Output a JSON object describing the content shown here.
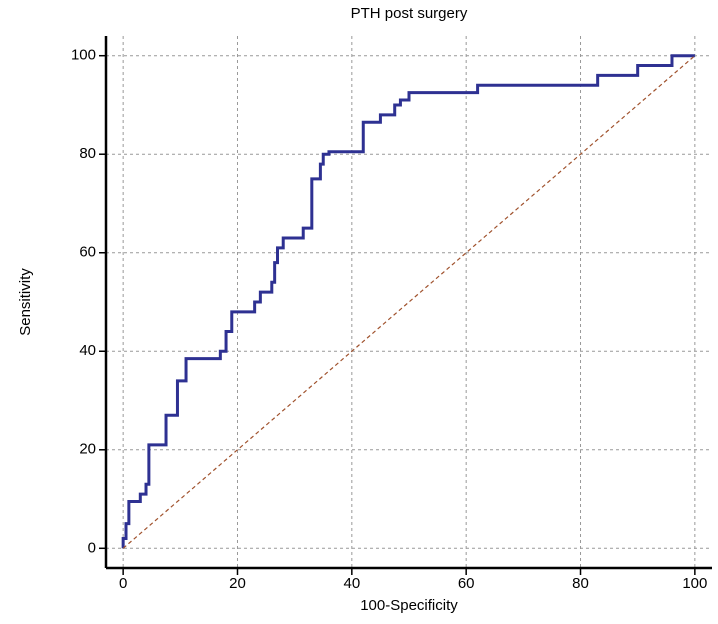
{
  "chart_data": {
    "type": "line",
    "title": "PTH  post surgery",
    "xlabel": "100-Specificity",
    "ylabel": "Sensitivity",
    "xlim": [
      -3,
      103
    ],
    "ylim": [
      -4,
      104
    ],
    "xticks": [
      0,
      20,
      40,
      60,
      80,
      100
    ],
    "yticks": [
      0,
      20,
      40,
      60,
      80,
      100
    ],
    "grid": true,
    "series": [
      {
        "color": "#2e3192",
        "style": "solid",
        "x": [
          0,
          0,
          0.5,
          0.5,
          1,
          1,
          3,
          3,
          4,
          4,
          4.5,
          4.5,
          7.5,
          7.5,
          9.5,
          9.5,
          11,
          11,
          17,
          17,
          18,
          18,
          19,
          19,
          23,
          23,
          24,
          24,
          26,
          26,
          26.5,
          26.5,
          27,
          27,
          28,
          28,
          31.5,
          31.5,
          33,
          33,
          34.5,
          34.5,
          35,
          35,
          36,
          36,
          42,
          42,
          45,
          45,
          47.5,
          47.5,
          48.5,
          48.5,
          50,
          50,
          62,
          62,
          83,
          83,
          90,
          90,
          96,
          96,
          100
        ],
        "values": [
          0,
          2,
          2,
          5,
          5,
          9.5,
          9.5,
          11,
          11,
          13,
          13,
          21,
          21,
          27,
          27,
          34,
          34,
          38.5,
          38.5,
          40,
          40,
          44,
          44,
          48,
          48,
          50,
          50,
          52,
          52,
          54,
          54,
          58,
          58,
          61,
          61,
          63,
          63,
          65,
          65,
          75,
          75,
          78,
          78,
          80,
          80,
          80.5,
          80.5,
          86.5,
          86.5,
          88,
          88,
          90,
          90,
          91,
          91,
          92.5,
          92.5,
          94,
          94,
          96,
          96,
          98,
          98,
          100,
          100
        ]
      },
      {
        "color": "#a0522d",
        "style": "dashed",
        "x": [
          0,
          100
        ],
        "values": [
          0,
          100
        ]
      }
    ]
  }
}
